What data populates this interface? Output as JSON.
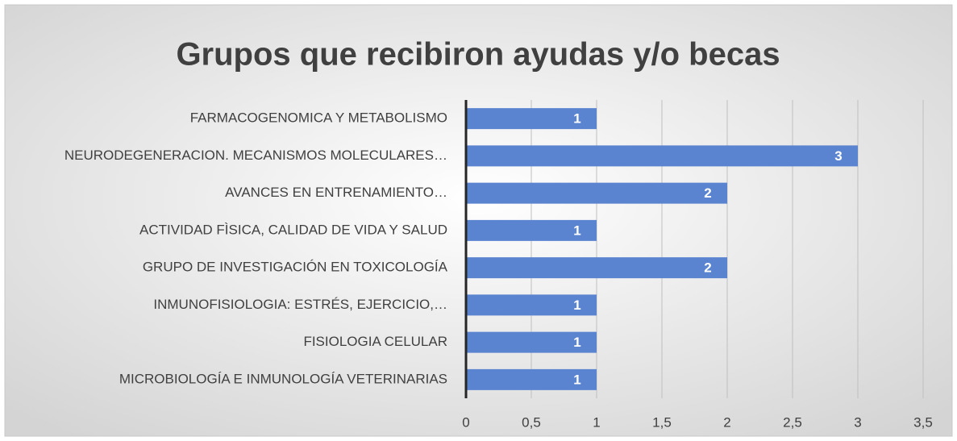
{
  "chart_data": {
    "type": "bar",
    "orientation": "horizontal",
    "title": "Grupos que recibiron ayudas y/o becas",
    "categories": [
      "FARMACOGENOMICA Y METABOLISMO",
      "NEURODEGENERACION. MECANISMOS MOLECULARES…",
      "AVANCES EN ENTRENAMIENTO…",
      "ACTIVIDAD FÌSICA, CALIDAD DE VIDA Y SALUD",
      "GRUPO DE INVESTIGACIÓN EN TOXICOLOGÍA",
      "INMUNOFISIOLOGIA: ESTRÉS, EJERCICIO,…",
      "FISIOLOGIA CELULAR",
      "MICROBIOLOGÍA E INMUNOLOGÍA VETERINARIAS"
    ],
    "values": [
      1,
      3,
      2,
      1,
      2,
      1,
      1,
      1
    ],
    "color": "#5b84d0",
    "xlim": [
      0,
      3.5
    ],
    "xticks": [
      0,
      {
        "value": 0.5,
        "label": "0,5"
      },
      1,
      {
        "value": 1.5,
        "label": "1,5"
      },
      2,
      {
        "value": 2.5,
        "label": "2,5"
      },
      3,
      {
        "value": 3.5,
        "label": "3,5"
      }
    ],
    "grid": true
  }
}
